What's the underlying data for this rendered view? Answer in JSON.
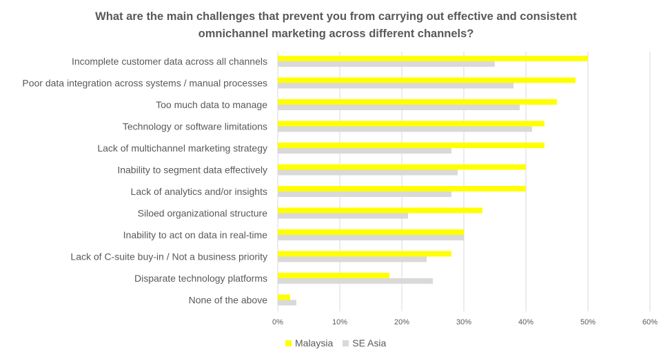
{
  "chart_data": {
    "type": "bar",
    "orientation": "horizontal",
    "title": "What are the main challenges that prevent you from carrying out effective and consistent omnichannel marketing across different channels?",
    "title_lines": [
      "What are the main challenges that prevent you from carrying out effective and consistent",
      "omnichannel marketing across different channels?"
    ],
    "categories": [
      "Incomplete customer data across all channels",
      "Poor data integration across systems / manual processes",
      "Too much data to manage",
      "Technology or software limitations",
      "Lack of multichannel marketing strategy",
      "Inability to segment data effectively",
      "Lack of analytics and/or insights",
      "Siloed organizational structure",
      "Inability to act on data in real-time",
      "Lack of C-suite buy-in / Not a business priority",
      "Disparate technology platforms",
      "None of the above"
    ],
    "series": [
      {
        "name": "Malaysia",
        "color": "#FFFF00",
        "values": [
          50,
          48,
          45,
          43,
          43,
          40,
          40,
          33,
          30,
          28,
          18,
          2
        ]
      },
      {
        "name": "SE Asia",
        "color": "#D9D9D9",
        "values": [
          35,
          38,
          39,
          41,
          28,
          29,
          28,
          21,
          30,
          24,
          25,
          3
        ]
      }
    ],
    "xlabel": "",
    "ylabel": "",
    "xlim": [
      0,
      60
    ],
    "x_ticks": [
      0,
      10,
      20,
      30,
      40,
      50,
      60
    ],
    "x_tick_labels": [
      "0%",
      "10%",
      "20%",
      "30%",
      "40%",
      "50%",
      "60%"
    ],
    "grid": true,
    "gridline_color": "#D9D9D9",
    "legend_position": "bottom-left"
  }
}
